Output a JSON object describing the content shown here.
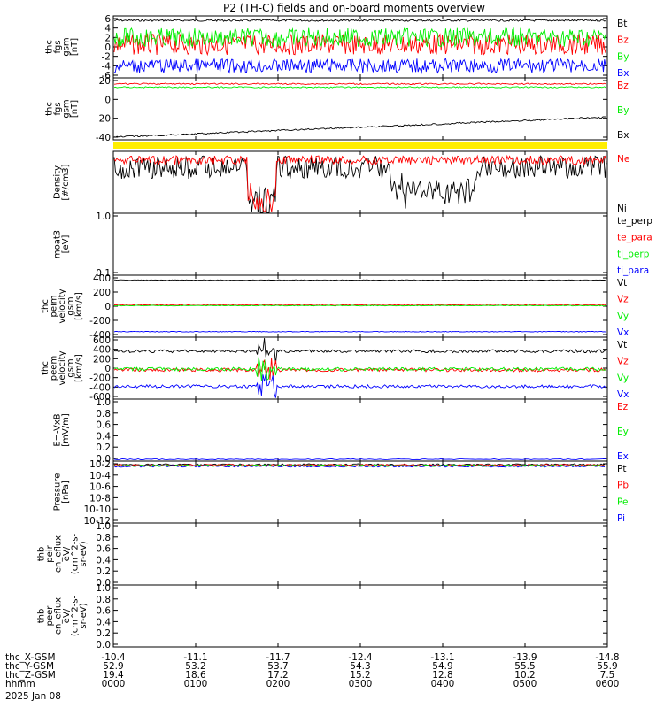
{
  "title": "P2 (TH-C) fields and on-board moments overview",
  "date": "2025 Jan 08",
  "colors": {
    "black": "#000000",
    "red": "#ff0000",
    "green": "#00ee00",
    "blue": "#0000ff",
    "yellow": "#ffee00"
  },
  "chart_data": [
    {
      "id": "fgs",
      "type": "line",
      "ylabel": [
        "thc",
        "fgs",
        "gsm",
        "[nT]"
      ],
      "ylim": [
        -6,
        6
      ],
      "yticks": [
        "6",
        "4",
        "2",
        "0",
        "-2",
        "-4",
        "-6"
      ],
      "series": [
        {
          "name": "Bt",
          "color": "#000000",
          "level": 5.6,
          "noise": 0.2
        },
        {
          "name": "Bz",
          "color": "#ff0000",
          "level": 0.5,
          "noise": 2.2
        },
        {
          "name": "By",
          "color": "#00ee00",
          "level": 2.0,
          "noise": 2.0
        },
        {
          "name": "Bx",
          "color": "#0000ff",
          "level": -4.0,
          "noise": 1.5
        }
      ]
    },
    {
      "id": "fgs_large",
      "type": "line",
      "ylabel": [
        "thc",
        "fgs",
        "gsm",
        "[nT]"
      ],
      "ylim": [
        -55,
        30
      ],
      "yticks": [
        "20",
        "0",
        "-20",
        "-40"
      ],
      "series": [
        {
          "name": "Bz",
          "color": "#ff0000",
          "level": 25,
          "noise": 1
        },
        {
          "name": "By",
          "color": "#00ee00",
          "level": 20,
          "noise": 1
        },
        {
          "name": "Bx",
          "color": "#000000",
          "level": -55,
          "end": -25,
          "noise": 1.2
        }
      ]
    },
    {
      "id": "mode_bar",
      "type": "bar",
      "color": "#ffee00"
    },
    {
      "id": "density",
      "type": "line",
      "ylabel": [
        "Density",
        "[#/cm3]"
      ],
      "yticks": [],
      "series": [
        {
          "name": "Ne",
          "color": "#ff0000"
        },
        {
          "name": "Ni",
          "color": "#000000"
        }
      ]
    },
    {
      "id": "temp",
      "type": "line",
      "ylabel": [
        "moat3",
        "[eV]"
      ],
      "ylim": [
        0.1,
        1.0
      ],
      "yscale": "log",
      "yticks": [
        "1.0",
        "0.1"
      ],
      "series": [
        {
          "name": "te_perp",
          "color": "#000000"
        },
        {
          "name": "te_para",
          "color": "#ff0000"
        },
        {
          "name": "ti_perp",
          "color": "#00ee00"
        },
        {
          "name": "ti_para",
          "color": "#0000ff"
        }
      ]
    },
    {
      "id": "peim",
      "type": "line",
      "ylabel": [
        "thc",
        "peim",
        "velocity",
        "gsm",
        "[km/s]"
      ],
      "ylim": [
        -500,
        500
      ],
      "yticks": [
        "400",
        "200",
        "0",
        "-200",
        "-400"
      ],
      "series": [
        {
          "name": "Vt",
          "color": "#000000",
          "level": 460,
          "noise": 6
        },
        {
          "name": "Vz",
          "color": "#ff0000",
          "level": 20,
          "noise": 6
        },
        {
          "name": "Vy",
          "color": "#00ee00",
          "level": 10,
          "noise": 6
        },
        {
          "name": "Vx",
          "color": "#0000ff",
          "level": -450,
          "noise": 6
        }
      ]
    },
    {
      "id": "peem",
      "type": "line",
      "ylabel": [
        "thc",
        "peem",
        "velocity",
        "gsm",
        "[km/s]"
      ],
      "ylim": [
        -700,
        750
      ],
      "yticks": [
        "600",
        "400",
        "200",
        "0",
        "-200",
        "-400",
        "-600"
      ],
      "series": [
        {
          "name": "Vt",
          "color": "#000000",
          "level": 460,
          "noise": 40
        },
        {
          "name": "Vz",
          "color": "#ff0000",
          "level": -20,
          "noise": 45
        },
        {
          "name": "Vy",
          "color": "#00ee00",
          "level": 0,
          "noise": 45
        },
        {
          "name": "Vx",
          "color": "#0000ff",
          "level": -440,
          "noise": 40
        }
      ]
    },
    {
      "id": "efield",
      "type": "line",
      "ylabel": [
        "E=-VxB",
        "[mV/m]"
      ],
      "ylim": [
        0,
        1.0
      ],
      "yticks": [
        "1.0",
        "0.8",
        "0.6",
        "0.4",
        "0.2",
        "0.0"
      ],
      "series": [
        {
          "name": "Ez",
          "color": "#ff0000"
        },
        {
          "name": "Ey",
          "color": "#00ee00"
        },
        {
          "name": "Ex",
          "color": "#0000ff"
        }
      ]
    },
    {
      "id": "pressure",
      "type": "line",
      "ylabel": [
        "Pressure",
        "[nPa]"
      ],
      "yscale": "log",
      "yticks": [
        "10-2",
        "10-4",
        "10-6",
        "10-8",
        "10-10",
        "10-12"
      ],
      "series": [
        {
          "name": "Pt",
          "color": "#000000"
        },
        {
          "name": "Pb",
          "color": "#ff0000"
        },
        {
          "name": "Pe",
          "color": "#00ee00"
        },
        {
          "name": "Pi",
          "color": "#0000ff"
        }
      ]
    },
    {
      "id": "thb_1",
      "type": "line",
      "ylabel": [
        "thb",
        "peir",
        "en_eflux",
        "eV/",
        "(cm^2-s-",
        "sr-eV)"
      ],
      "ylim": [
        0,
        1.0
      ],
      "yticks": [
        "1.0",
        "0.8",
        "0.6",
        "0.4",
        "0.2",
        "0.0"
      ],
      "series": []
    },
    {
      "id": "thb_2",
      "type": "line",
      "ylabel": [
        "thb",
        "peer",
        "en_eflux",
        "eV/",
        "(cm^2-s-",
        "sr-eV)"
      ],
      "ylim": [
        0,
        1.0
      ],
      "yticks": [
        "1.0",
        "0.8",
        "0.6",
        "0.4",
        "0.2",
        "0.0"
      ],
      "series": []
    }
  ],
  "x_axis": {
    "row_labels": [
      "thc_X-GSM",
      "thc_Y-GSM",
      "thc_Z-GSM",
      "hhmm"
    ],
    "columns": [
      {
        "x": "-10.4",
        "y": "52.9",
        "z": "19.4",
        "t": "0000"
      },
      {
        "x": "-11.1",
        "y": "53.2",
        "z": "18.6",
        "t": "0100"
      },
      {
        "x": "-11.7",
        "y": "53.7",
        "z": "17.2",
        "t": "0200"
      },
      {
        "x": "-12.4",
        "y": "54.3",
        "z": "15.2",
        "t": "0300"
      },
      {
        "x": "-13.1",
        "y": "54.9",
        "z": "12.8",
        "t": "0400"
      },
      {
        "x": "-13.9",
        "y": "55.5",
        "z": "10.2",
        "t": "0500"
      },
      {
        "x": "-14.8",
        "y": "55.9",
        "z": "7.5",
        "t": "0600"
      }
    ]
  }
}
